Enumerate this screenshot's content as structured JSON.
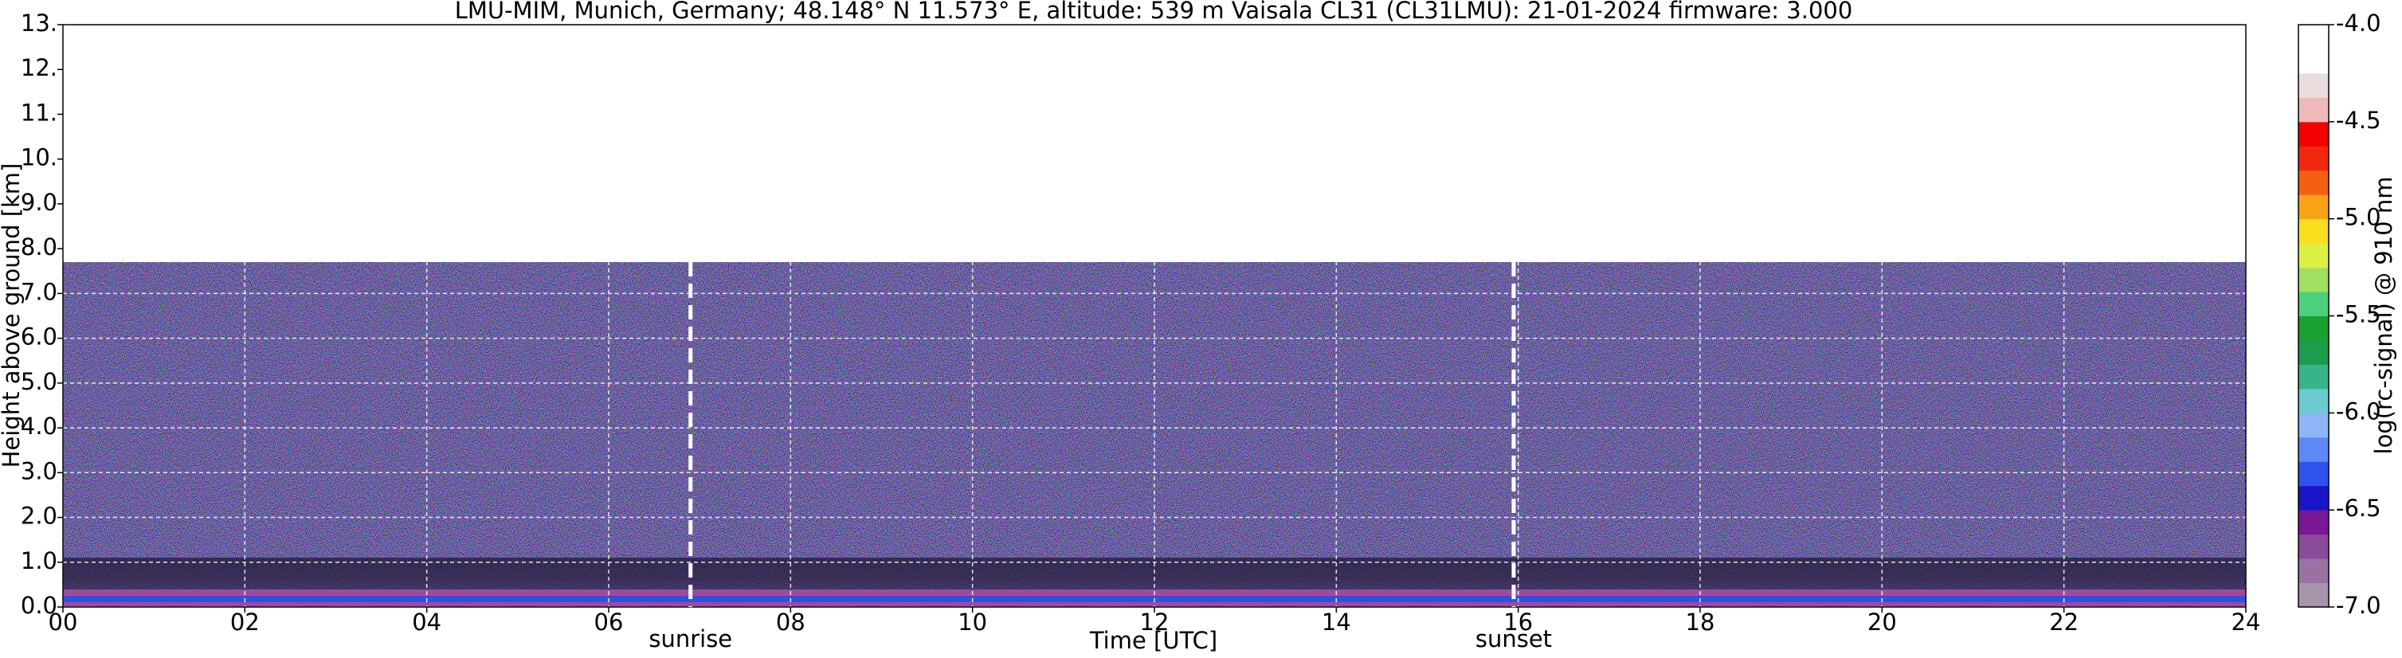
{
  "chart_data": {
    "type": "heatmap",
    "title": "LMU-MIM, Munich, Germany; 48.148° N 11.573° E, altitude: 539 m    Vaisala CL31 (CL31LMU): 21-01-2024    firmware: 3.000",
    "xlabel": "Time [UTC]",
    "ylabel": "Height above ground [km]",
    "xlim": [
      0,
      24
    ],
    "xticks": [
      {
        "value": 0,
        "label": "00"
      },
      {
        "value": 2,
        "label": "02"
      },
      {
        "value": 4,
        "label": "04"
      },
      {
        "value": 6,
        "label": "06"
      },
      {
        "value": 8,
        "label": "08"
      },
      10,
      12,
      14,
      16,
      18,
      20,
      22,
      24
    ],
    "ylim": [
      0,
      13
    ],
    "yticks": [
      {
        "value": 0,
        "label": "0.0"
      },
      {
        "value": 1,
        "label": "1.0"
      },
      {
        "value": 2,
        "label": "2.0"
      },
      {
        "value": 3,
        "label": "3.0"
      },
      {
        "value": 4,
        "label": "4.0"
      },
      {
        "value": 5,
        "label": "5.0"
      },
      {
        "value": 6,
        "label": "6.0"
      },
      {
        "value": 7,
        "label": "7.0"
      },
      {
        "value": 8,
        "label": "8.0"
      },
      {
        "value": 9,
        "label": "9.0"
      },
      {
        "value": 10,
        "label": "10."
      },
      {
        "value": 11,
        "label": "11."
      },
      {
        "value": 12,
        "label": "12."
      },
      {
        "value": 13,
        "label": "13."
      }
    ],
    "grid": true,
    "annotations": [
      {
        "label": "sunrise",
        "x": 6.9
      },
      {
        "label": "sunset",
        "x": 15.95
      }
    ],
    "colorbar": {
      "label": "log(rc-signal) @ 910 nm",
      "lim": [
        -7,
        -4
      ],
      "ticks": [
        {
          "value": -7,
          "label": "-7.0"
        },
        {
          "value": -6.5,
          "label": "-6.5"
        },
        {
          "value": -6,
          "label": "-6.0"
        },
        {
          "value": -5.5,
          "label": "-5.5"
        },
        {
          "value": -5,
          "label": "-5.0"
        },
        {
          "value": -4.5,
          "label": "-4.5"
        },
        {
          "value": -4,
          "label": "-4.0"
        }
      ],
      "colors": [
        "#a894ac",
        "#9a72a2",
        "#8a4c9a",
        "#7a1896",
        "#1a14c8",
        "#2f52ee",
        "#5e88f6",
        "#90b4fa",
        "#6ccad0",
        "#38b48c",
        "#1c9c4c",
        "#18a030",
        "#4cd07c",
        "#a0e064",
        "#dcf044",
        "#f8e020",
        "#f8a418",
        "#f46010",
        "#f02810",
        "#f40000",
        "#f0b8b8",
        "#e8dcdc",
        "#ffffff",
        "#ffffff"
      ]
    }
  }
}
